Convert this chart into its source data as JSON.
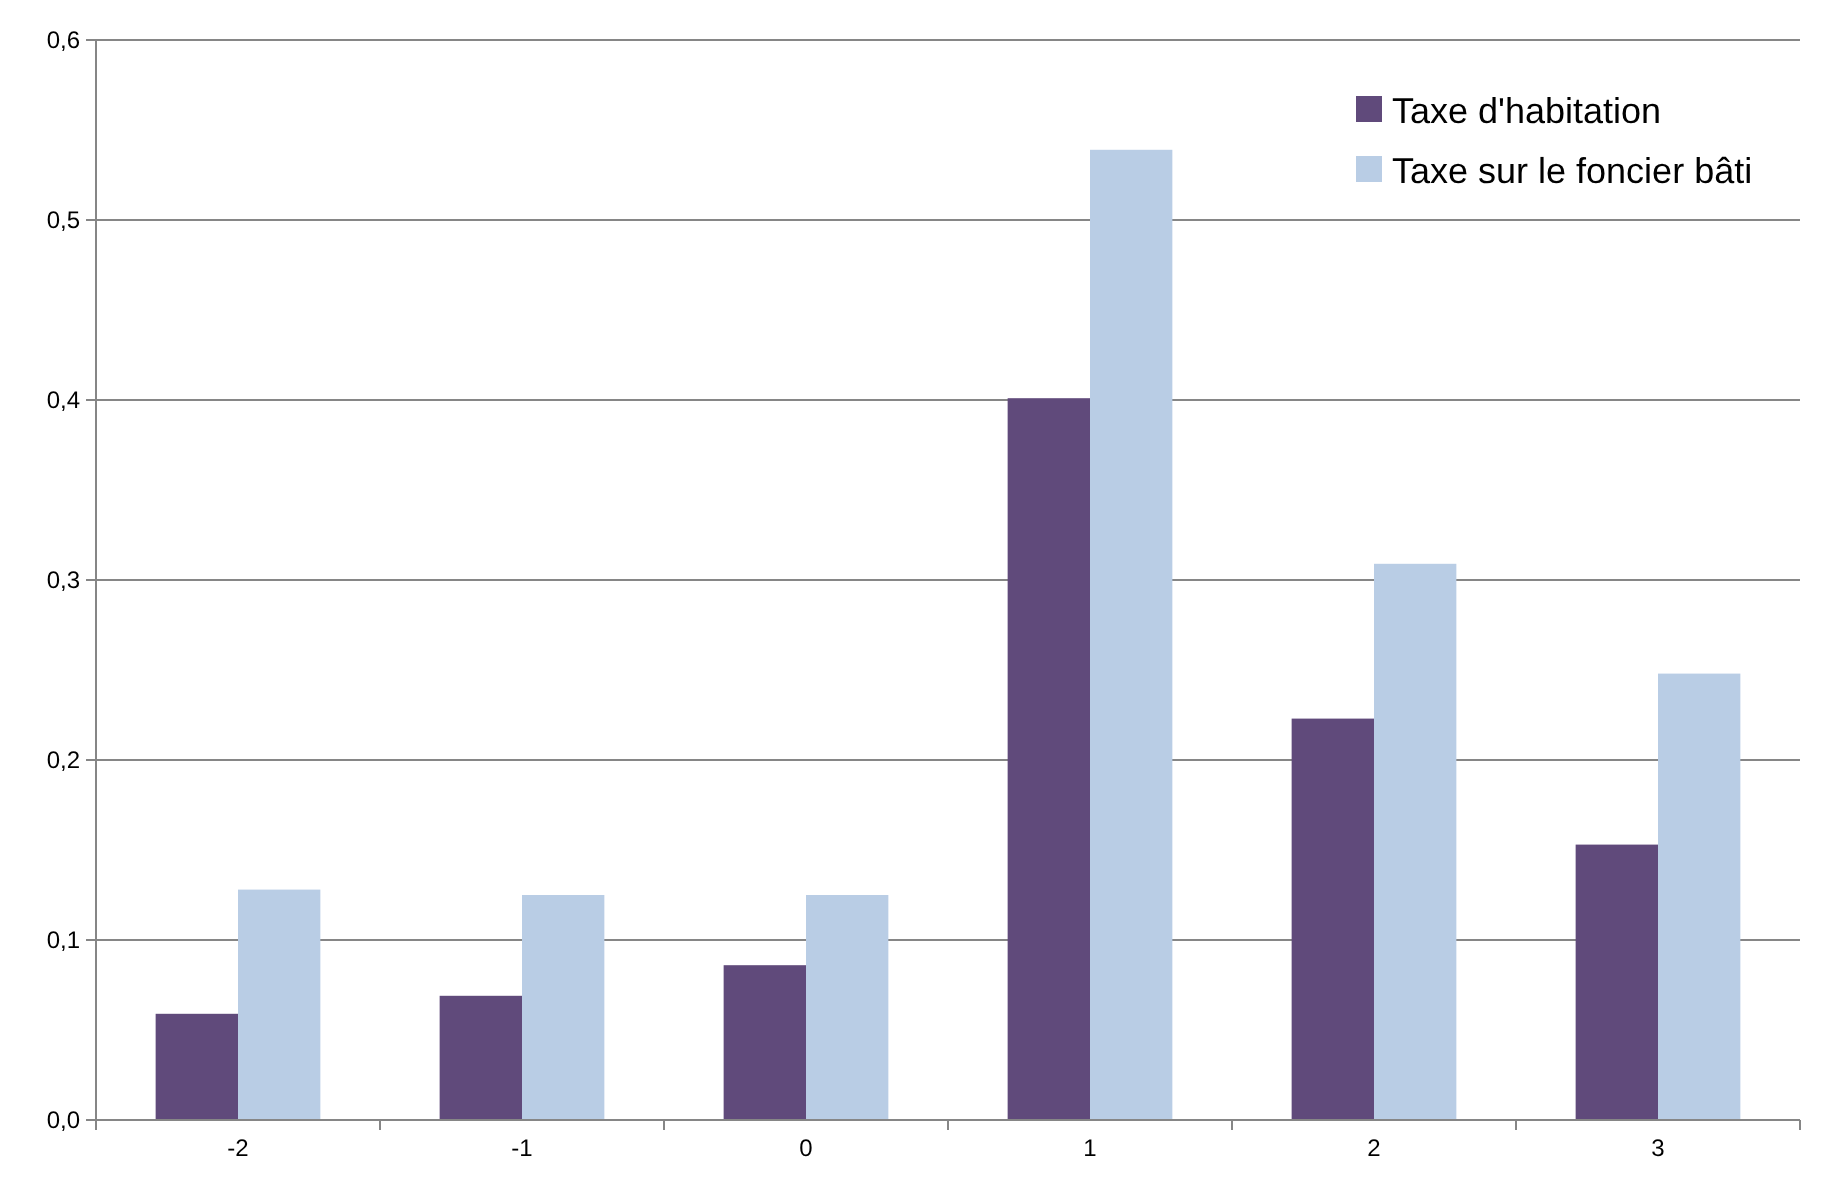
{
  "chart_data": {
    "type": "bar",
    "categories": [
      "-2",
      "-1",
      "0",
      "1",
      "2",
      "3"
    ],
    "series": [
      {
        "name": "Taxe d'habitation",
        "color": "#604a7b",
        "values": [
          0.059,
          0.069,
          0.086,
          0.401,
          0.223,
          0.153
        ]
      },
      {
        "name": "Taxe sur le foncier bâti",
        "color": "#b9cde5",
        "values": [
          0.128,
          0.125,
          0.125,
          0.539,
          0.309,
          0.248
        ]
      }
    ],
    "ylim": [
      0,
      0.6
    ],
    "yticks": [
      {
        "value": 0,
        "label": "0,0"
      },
      {
        "value": 0.1,
        "label": "0,1"
      },
      {
        "value": 0.2,
        "label": "0,2"
      },
      {
        "value": 0.3,
        "label": "0,3"
      },
      {
        "value": 0.4,
        "label": "0,4"
      },
      {
        "value": 0.5,
        "label": "0,5"
      },
      {
        "value": 0.6,
        "label": "0,6"
      }
    ],
    "grid": "y",
    "legend": "top right"
  }
}
